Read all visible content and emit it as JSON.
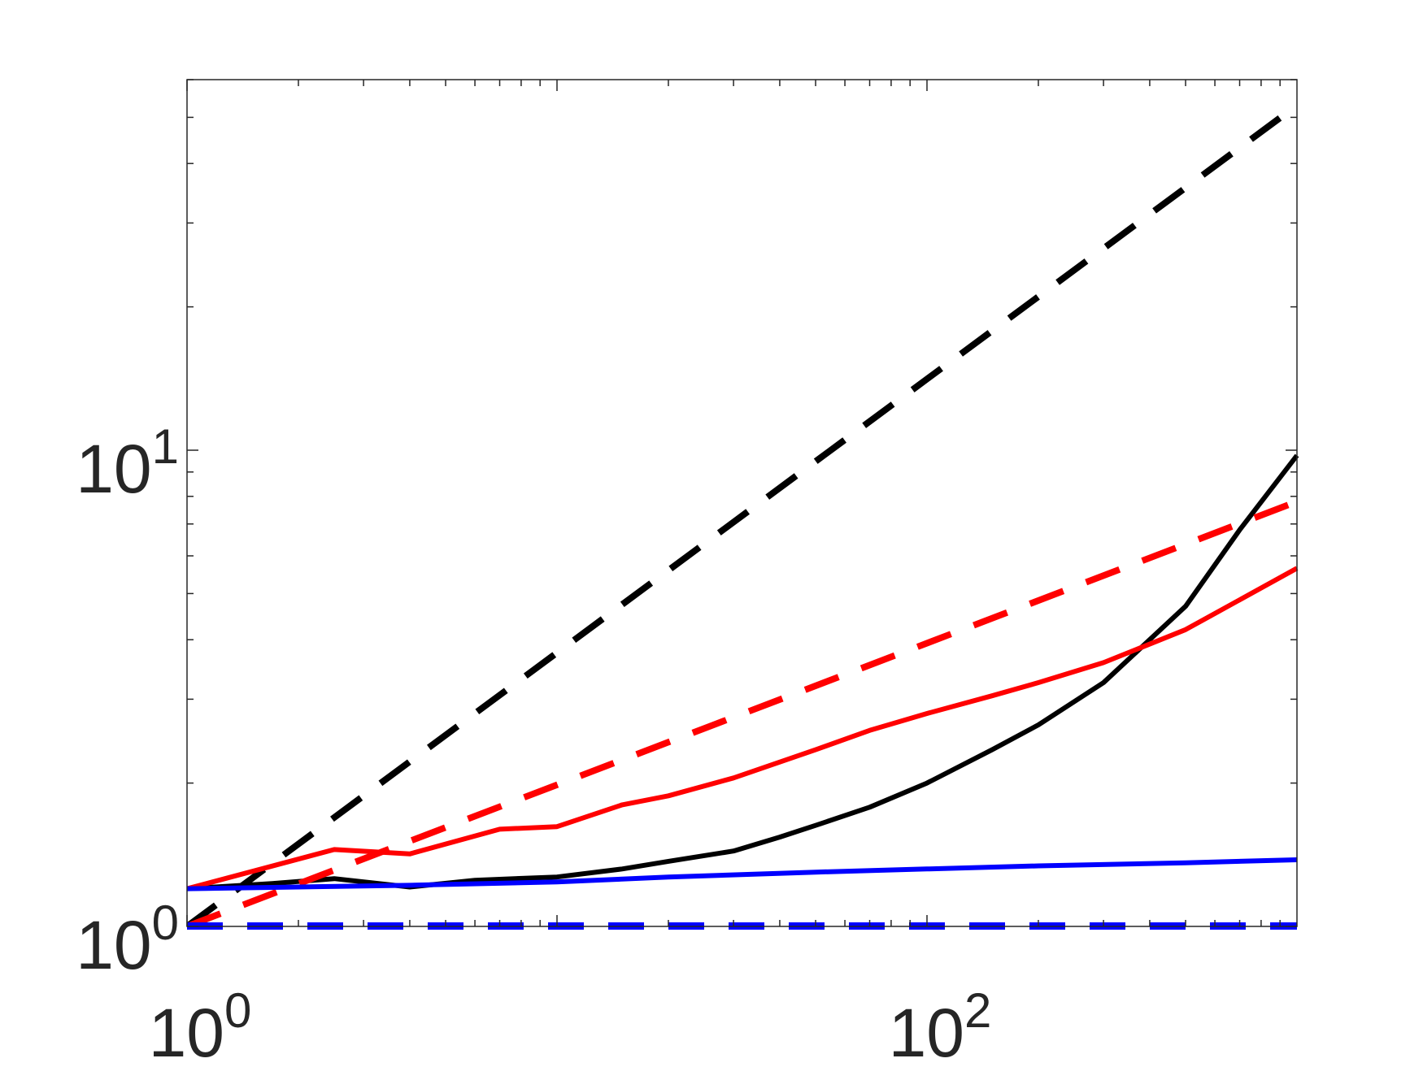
{
  "chart_data": {
    "type": "line",
    "title": "",
    "xlabel": "",
    "ylabel": "",
    "xscale": "log",
    "yscale": "log",
    "xlim": [
      1,
      1000
    ],
    "ylim": [
      1,
      60
    ],
    "grid": false,
    "legend": "none",
    "x_ticks": [
      {
        "value": 1,
        "base": "10",
        "exp": "0"
      },
      {
        "value": 100,
        "base": "10",
        "exp": "2"
      }
    ],
    "y_ticks": [
      {
        "value": 1,
        "base": "10",
        "exp": "0"
      },
      {
        "value": 10,
        "base": "10",
        "exp": "1"
      }
    ],
    "series": [
      {
        "color": "#000000",
        "style": "dashed",
        "x": [
          1,
          1000
        ],
        "y": [
          1,
          53
        ]
      },
      {
        "color": "#000000",
        "style": "solid",
        "x": [
          1,
          1.7,
          2.5,
          4,
          6,
          10,
          15,
          20,
          30,
          40,
          50,
          70,
          100,
          150,
          200,
          300,
          500,
          700,
          1000
        ],
        "y": [
          1.2,
          1.23,
          1.26,
          1.21,
          1.25,
          1.27,
          1.32,
          1.37,
          1.44,
          1.54,
          1.63,
          1.78,
          2.0,
          2.35,
          2.65,
          3.25,
          4.7,
          6.8,
          9.75
        ]
      },
      {
        "color": "#ff0000",
        "style": "dashed",
        "x": [
          1,
          1000
        ],
        "y": [
          1,
          7.8
        ]
      },
      {
        "color": "#ff0000",
        "style": "solid",
        "x": [
          1,
          2.5,
          4,
          7,
          10,
          15,
          20,
          30,
          50,
          70,
          100,
          150,
          200,
          300,
          500,
          1000
        ],
        "y": [
          1.2,
          1.45,
          1.42,
          1.6,
          1.62,
          1.8,
          1.88,
          2.05,
          2.35,
          2.58,
          2.8,
          3.05,
          3.25,
          3.58,
          4.2,
          5.65
        ]
      },
      {
        "color": "#0000ff",
        "style": "solid",
        "x": [
          1,
          2,
          4,
          10,
          20,
          50,
          100,
          200,
          500,
          1000
        ],
        "y": [
          1.2,
          1.21,
          1.22,
          1.24,
          1.27,
          1.3,
          1.32,
          1.34,
          1.36,
          1.38
        ]
      },
      {
        "color": "#0000ff",
        "style": "dashed",
        "x": [
          1,
          1000
        ],
        "y": [
          1,
          1
        ]
      }
    ]
  }
}
